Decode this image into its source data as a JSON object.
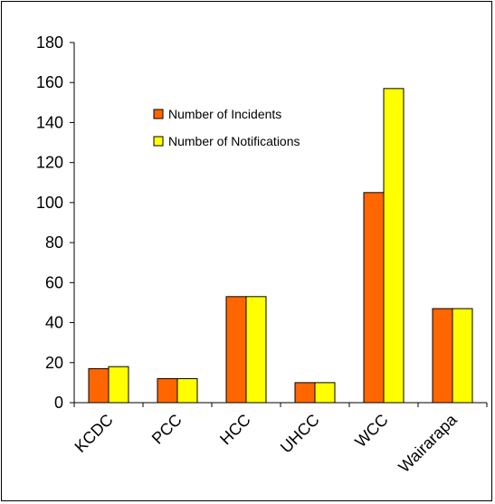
{
  "chart_data": {
    "type": "bar",
    "categories": [
      "KCDC",
      "PCC",
      "HCC",
      "UHCC",
      "WCC",
      "Wairarapa"
    ],
    "series": [
      {
        "name": "Number of Incidents",
        "values": [
          17,
          12,
          53,
          10,
          105,
          47
        ],
        "color": "#FF6600"
      },
      {
        "name": "Number of Notifications",
        "values": [
          18,
          12,
          53,
          10,
          157,
          47
        ],
        "color": "#FFFF00"
      }
    ],
    "yticks": [
      "0",
      "20",
      "40",
      "60",
      "80",
      "100",
      "120",
      "140",
      "160",
      "180"
    ],
    "ylim": [
      0,
      180
    ],
    "grid": false,
    "legend_position": "inside-top"
  }
}
